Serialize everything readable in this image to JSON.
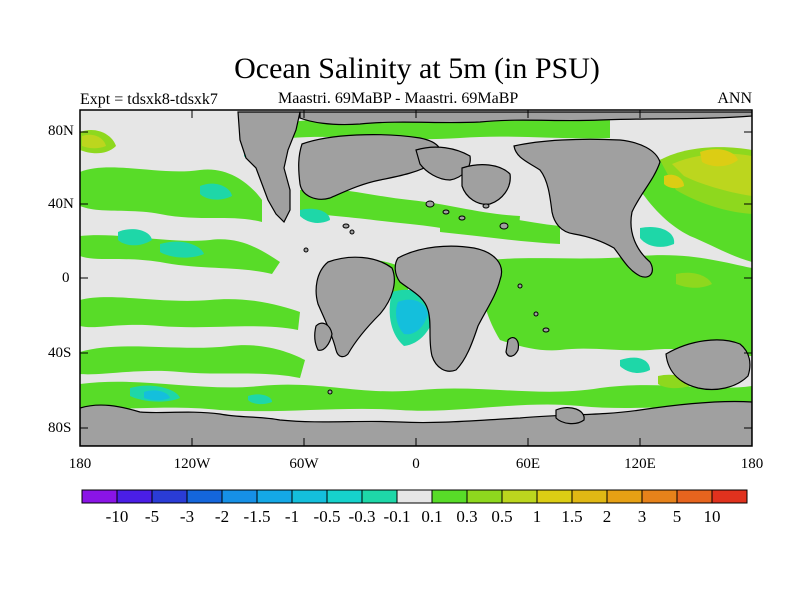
{
  "title": "Ocean Salinity at 5m (in PSU)",
  "experiment": "Expt = tdsxk8-tdsxk7",
  "subtitle": "Maastri.  69MaBP - Maastri.  69MaBP",
  "season": "ANN",
  "y_axis_labels": [
    "80N",
    "40N",
    "0",
    "40S",
    "80S"
  ],
  "x_axis_labels": [
    "180",
    "120W",
    "60W",
    "0",
    "60E",
    "120E",
    "180"
  ],
  "colorbar": {
    "labels": [
      "-10",
      "-5",
      "-3",
      "-2",
      "-1.5",
      "-1",
      "-0.5",
      "-0.3",
      "-0.1",
      "0.1",
      "0.3",
      "0.5",
      "1",
      "1.5",
      "2",
      "3",
      "5",
      "10"
    ],
    "colors": [
      "#8a14e6",
      "#4a1ee6",
      "#2a3cd6",
      "#1466dc",
      "#1690e6",
      "#14a8e6",
      "#14bfdc",
      "#16d2cc",
      "#1ed7a8",
      "#e6e6e6",
      "#58dc28",
      "#8ed81e",
      "#bcd61e",
      "#dccd14",
      "#e0b814",
      "#e6a014",
      "#e6821a",
      "#e6641e",
      "#e0321e"
    ]
  },
  "colors": {
    "land": "#a0a0a0",
    "neutral_ocean": "#e6e6e6",
    "positive_low": "#58dc28",
    "negative_low": "#1ed7a8",
    "negative_mid": "#14bfdc"
  }
}
